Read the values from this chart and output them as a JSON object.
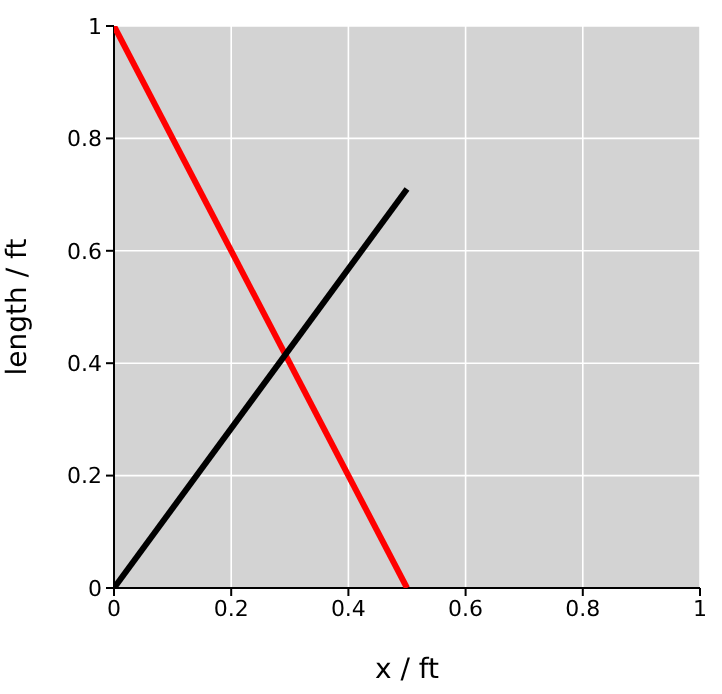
{
  "chart_data": {
    "type": "line",
    "xlabel": "x / ft",
    "ylabel": "length / ft",
    "x": [
      0,
      0.5
    ],
    "series": [
      {
        "color": "#ff0000",
        "values": [
          1,
          0
        ]
      },
      {
        "color": "#000000",
        "values": [
          0,
          0.71
        ]
      }
    ],
    "xlim": [
      0,
      1
    ],
    "ylim": [
      0,
      1
    ],
    "xticks": [
      0,
      0.2,
      0.4,
      0.6,
      0.8,
      1
    ],
    "yticks": [
      0,
      0.2,
      0.4,
      0.6,
      0.8,
      1
    ],
    "grid": true,
    "marker": "none",
    "line_style": "solid"
  }
}
